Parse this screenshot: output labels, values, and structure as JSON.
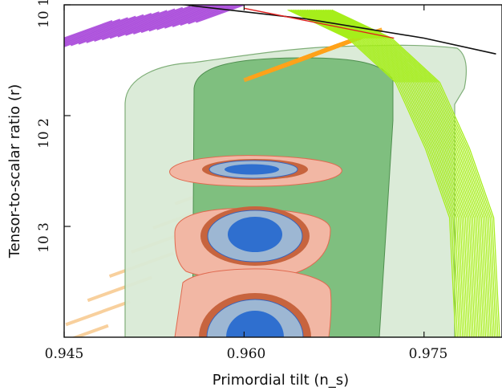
{
  "colors": {
    "violet": "#a540d8",
    "orange": "#ffa21a",
    "green": "#a6ee1a",
    "light_orange": "#f7c88c",
    "band_light": "#d9ead6",
    "band_dark": "#7fbf7f",
    "salmon": "#f2b7a4",
    "rust": "#c7643e",
    "steel": "#9db7d3",
    "blue": "#2f6fcf",
    "red": "#e02020"
  },
  "chart_data": {
    "type": "contour",
    "xlabel": "Primordial tilt (n_s)",
    "ylabel": "Tensor-to-scalar ratio (r)",
    "xlim": [
      0.945,
      0.9815
    ],
    "xscale": "linear",
    "yscale": "log",
    "x_ticks": [
      "0.945",
      "0.960",
      "0.975"
    ],
    "x_tick_values": [
      0.945,
      0.96,
      0.975
    ],
    "y_ticks": [
      "10^-1",
      "10^-2",
      "10^-3"
    ],
    "y_tick_labels_as_shown": [
      "10 1",
      "10 2",
      "10 3"
    ],
    "y_tick_values": [
      0.1,
      0.01,
      0.001
    ],
    "ylim": [
      0.0001,
      0.1
    ],
    "regions": [
      {
        "kind": "band",
        "tone": "light",
        "ns_range": [
          0.947,
          0.9775
        ],
        "r_range": [
          0.0001,
          0.06
        ]
      },
      {
        "kind": "band",
        "tone": "dark",
        "ns_range": [
          0.9525,
          0.9715
        ],
        "r_range": [
          0.0001,
          0.04
        ]
      },
      {
        "kind": "forecast",
        "center": [
          0.961,
          0.0035
        ],
        "levels": 4
      },
      {
        "kind": "forecast",
        "center": [
          0.961,
          0.001
        ],
        "levels": 4
      },
      {
        "kind": "forecast",
        "center": [
          0.961,
          0.00012
        ],
        "levels": 4
      }
    ],
    "bands": [
      {
        "tone": "violet",
        "from": [
          0.945,
          0.05
        ],
        "to": [
          0.96,
          0.1
        ]
      },
      {
        "tone": "orange",
        "from": [
          0.962,
          0.025
        ],
        "to": [
          0.9695,
          0.05
        ]
      },
      {
        "tone": "green",
        "from": [
          0.9655,
          0.09
        ],
        "to": [
          0.9795,
          0.0001
        ]
      },
      {
        "tone": "light_orange",
        "from": [
          0.946,
          0.0001
        ],
        "to": [
          0.966,
          0.025
        ]
      }
    ],
    "lines": [
      {
        "tone": "black",
        "points": [
          [
            0.946,
            0.115
          ],
          [
            0.955,
            0.1
          ],
          [
            0.965,
            0.075
          ],
          [
            0.975,
            0.05
          ],
          [
            0.981,
            0.036
          ]
        ]
      },
      {
        "tone": "red",
        "points": [
          [
            0.96,
            0.093
          ],
          [
            0.9725,
            0.05
          ]
        ]
      }
    ],
    "grid": false,
    "legend": "none"
  }
}
